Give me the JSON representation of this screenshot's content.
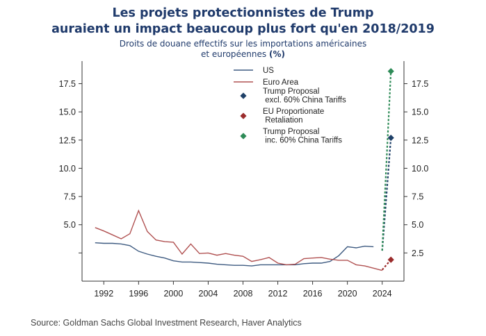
{
  "header": {
    "title_line1": "Les projets protectionnistes de Trump",
    "title_line2": "auraient un impact beaucoup plus fort qu'en 2018/2019",
    "subtitle_line1": "Droits de douane effectifs sur les importations américaines",
    "subtitle_line2": "et européennes",
    "subtitle_unit": "(%)"
  },
  "source": "Source: Goldman Sachs Global Investment Research, Haver Analytics",
  "chart_data": {
    "type": "line",
    "title": "Les projets protectionnistes de Trump auraient un impact beaucoup plus fort qu'en 2018/2019",
    "xlabel": "",
    "ylabel": "",
    "xlim": [
      1989.5,
      2026.5
    ],
    "ylim": [
      0,
      19.5
    ],
    "x_ticks": [
      1992,
      1996,
      2000,
      2004,
      2008,
      2012,
      2016,
      2020,
      2024
    ],
    "y_ticks": [
      2.5,
      5.0,
      7.5,
      10.0,
      12.5,
      15.0,
      17.5
    ],
    "y_tick_labels": [
      "2.5",
      "5.0",
      "7.5",
      "10.0",
      "12.5",
      "15.0",
      "17.5"
    ],
    "left_axis_hidden_ticks": [
      2.5
    ],
    "grid": false,
    "legend_position": "top-center",
    "series": [
      {
        "name": "US",
        "color": "#3d5a80",
        "style": "line",
        "x": [
          1991,
          1992,
          1993,
          1994,
          1995,
          1996,
          1997,
          1998,
          1999,
          2000,
          2001,
          2002,
          2003,
          2004,
          2005,
          2006,
          2007,
          2008,
          2009,
          2010,
          2011,
          2012,
          2013,
          2014,
          2015,
          2016,
          2017,
          2018,
          2019,
          2020,
          2021,
          2022,
          2023
        ],
        "values": [
          3.4,
          3.35,
          3.35,
          3.3,
          3.15,
          2.65,
          2.4,
          2.2,
          2.05,
          1.8,
          1.7,
          1.7,
          1.65,
          1.6,
          1.5,
          1.45,
          1.4,
          1.4,
          1.35,
          1.45,
          1.45,
          1.45,
          1.45,
          1.45,
          1.55,
          1.6,
          1.6,
          1.75,
          2.25,
          3.05,
          2.95,
          3.1,
          3.05
        ]
      },
      {
        "name": "Euro Area",
        "color": "#b05050",
        "style": "line",
        "x": [
          1991,
          1992,
          1993,
          1994,
          1995,
          1996,
          1997,
          1998,
          1999,
          2000,
          2001,
          2002,
          2003,
          2004,
          2005,
          2006,
          2007,
          2008,
          2009,
          2010,
          2011,
          2012,
          2013,
          2014,
          2015,
          2016,
          2017,
          2018,
          2019,
          2020,
          2021,
          2022,
          2023,
          2024
        ],
        "values": [
          4.75,
          4.45,
          4.1,
          3.75,
          4.2,
          6.25,
          4.4,
          3.65,
          3.5,
          3.45,
          2.4,
          3.3,
          2.45,
          2.5,
          2.3,
          2.45,
          2.3,
          2.2,
          1.75,
          1.9,
          2.1,
          1.6,
          1.45,
          1.5,
          2.0,
          2.05,
          2.1,
          1.95,
          1.85,
          1.85,
          1.45,
          1.35,
          1.15,
          0.95
        ]
      },
      {
        "name": "Trump Proposal excl. 60% China Tariffs",
        "color": "#1f4068",
        "style": "dashed+marker",
        "x": [
          2024,
          2025
        ],
        "values": [
          2.7,
          12.7
        ]
      },
      {
        "name": "EU Proportionate Retaliation",
        "color": "#9b2c2c",
        "style": "dashed+marker",
        "x": [
          2024,
          2025
        ],
        "values": [
          1.0,
          1.9
        ]
      },
      {
        "name": "Trump Proposal inc. 60% China Tariffs",
        "color": "#2e8b57",
        "style": "dashed+marker",
        "x": [
          2024,
          2025
        ],
        "values": [
          2.7,
          18.6
        ]
      }
    ],
    "legend": [
      {
        "label_lines": [
          "US"
        ],
        "kind": "line",
        "color": "#3d5a80"
      },
      {
        "label_lines": [
          "Euro Area"
        ],
        "kind": "line",
        "color": "#b05050"
      },
      {
        "label_lines": [
          "Trump Proposal",
          "excl. 60% China Tariffs"
        ],
        "kind": "marker",
        "color": "#1f4068"
      },
      {
        "label_lines": [
          "EU Proportionate",
          "Retaliation"
        ],
        "kind": "marker",
        "color": "#9b2c2c"
      },
      {
        "label_lines": [
          "Trump Proposal",
          "inc. 60% China Tariffs"
        ],
        "kind": "marker",
        "color": "#2e8b57"
      }
    ]
  }
}
